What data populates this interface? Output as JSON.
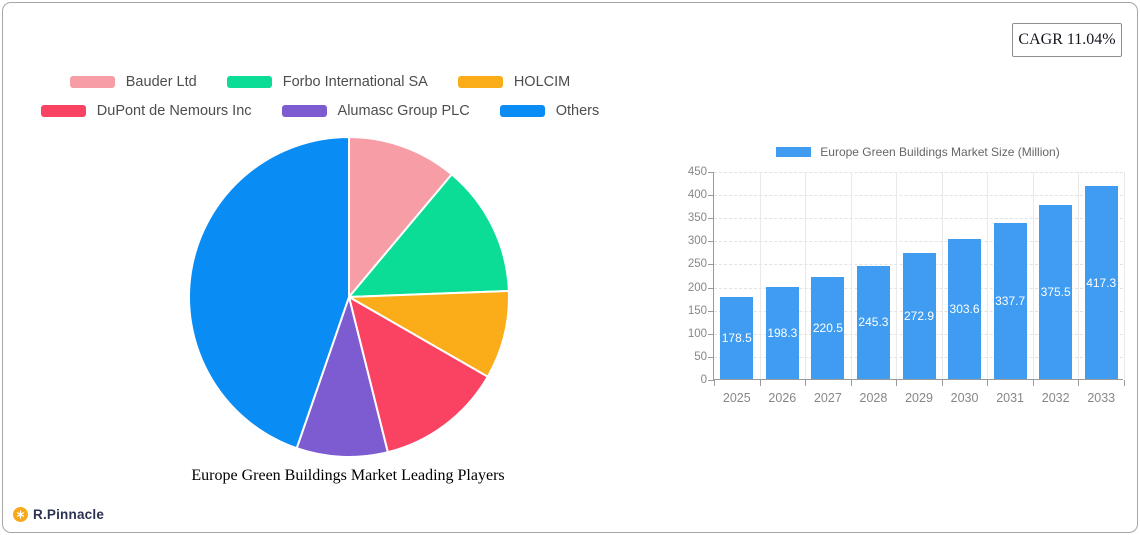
{
  "cagr_badge": "CAGR 11.04%",
  "brand": {
    "name": "R.Pinnacle",
    "icon_color": "#f7a81b"
  },
  "chart_data": [
    {
      "type": "pie",
      "title": "Europe Green Buildings Market Leading Players",
      "legend_position": "top",
      "slices": [
        {
          "label": "Bauder Ltd",
          "value": 11.1,
          "color": "#f79da6"
        },
        {
          "label": "Forbo International SA",
          "value": 13.3,
          "color": "#0bdc96"
        },
        {
          "label": "HOLCIM",
          "value": 8.9,
          "color": "#fbad19"
        },
        {
          "label": "DuPont de Nemours Inc",
          "value": 12.8,
          "color": "#fa4263"
        },
        {
          "label": "Alumasc Group PLC",
          "value": 9.2,
          "color": "#7d5cd1"
        },
        {
          "label": "Others",
          "value": 44.7,
          "color": "#0a8cf5"
        }
      ]
    },
    {
      "type": "bar",
      "series_name": "Europe Green Buildings Market Size (Million)",
      "categories": [
        "2025",
        "2026",
        "2027",
        "2028",
        "2029",
        "2030",
        "2031",
        "2032",
        "2033"
      ],
      "values": [
        178.5,
        198.3,
        220.5,
        245.3,
        272.9,
        303.6,
        337.7,
        375.5,
        417.3
      ],
      "bar_color": "#3f9cf0",
      "ylim": [
        0,
        450
      ],
      "ytick_step": 50,
      "grid": true,
      "legend_position": "top"
    }
  ]
}
